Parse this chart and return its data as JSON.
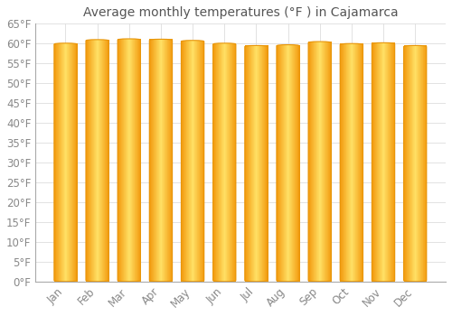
{
  "title": "Average monthly temperatures (°F ) in Cajamarca",
  "months": [
    "Jan",
    "Feb",
    "Mar",
    "Apr",
    "May",
    "Jun",
    "Jul",
    "Aug",
    "Sep",
    "Oct",
    "Nov",
    "Dec"
  ],
  "values": [
    60.1,
    61.0,
    61.2,
    61.1,
    60.8,
    60.1,
    59.5,
    59.7,
    60.5,
    60.0,
    60.2,
    59.5
  ],
  "bar_color_center": "#FFD966",
  "bar_color_edge": "#E8960A",
  "background_color": "#FFFFFF",
  "plot_bg_color": "#FFFFFF",
  "grid_color": "#DDDDDD",
  "text_color": "#888888",
  "title_color": "#555555",
  "ylim": [
    0,
    65
  ],
  "yticks": [
    0,
    5,
    10,
    15,
    20,
    25,
    30,
    35,
    40,
    45,
    50,
    55,
    60,
    65
  ],
  "ylabel_suffix": "°F",
  "title_fontsize": 10,
  "tick_fontsize": 8.5
}
